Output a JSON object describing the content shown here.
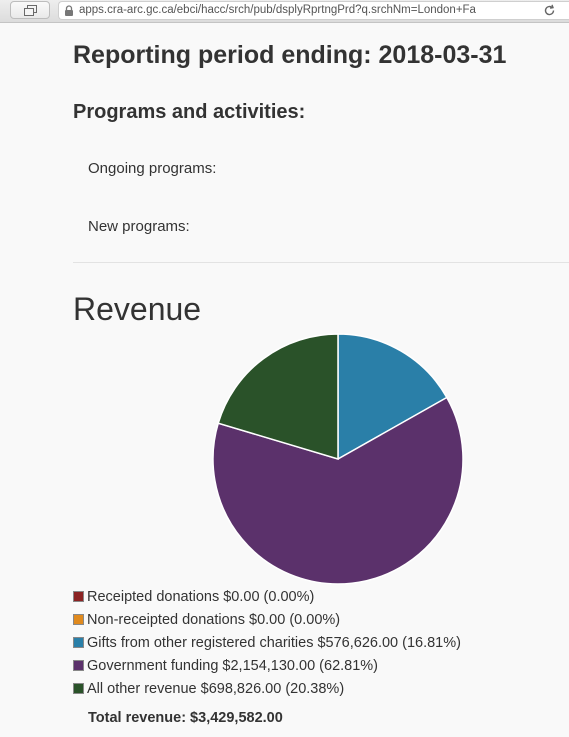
{
  "browser": {
    "url": "apps.cra-arc.gc.ca/ebci/hacc/srch/pub/dsplyRprtngPrd?q.srchNm=London+Fa"
  },
  "page": {
    "period_heading": "Reporting period ending: 2018-03-31",
    "programs_heading": "Programs and activities:",
    "ongoing_label": "Ongoing programs:",
    "new_label": "New programs:",
    "revenue_heading": "Revenue",
    "total_revenue": "Total revenue: $3,429,582.00"
  },
  "chart_data": {
    "type": "pie",
    "slices": [
      {
        "label": "Receipted donations $0.00 (0.00%)",
        "value": 0.0,
        "percent": 0.0,
        "color": "#8b2323"
      },
      {
        "label": "Non-receipted donations $0.00 (0.00%)",
        "value": 0.0,
        "percent": 0.0,
        "color": "#e08a1e"
      },
      {
        "label": "Gifts from other registered charities $576,626.00 (16.81%)",
        "value": 576626.0,
        "percent": 16.81,
        "color": "#2a7fa8"
      },
      {
        "label": "Government funding $2,154,130.00 (62.81%)",
        "value": 2154130.0,
        "percent": 62.81,
        "color": "#5b316b"
      },
      {
        "label": "All other revenue $698,826.00 (20.38%)",
        "value": 698826.0,
        "percent": 20.38,
        "color": "#2a5229"
      }
    ]
  }
}
